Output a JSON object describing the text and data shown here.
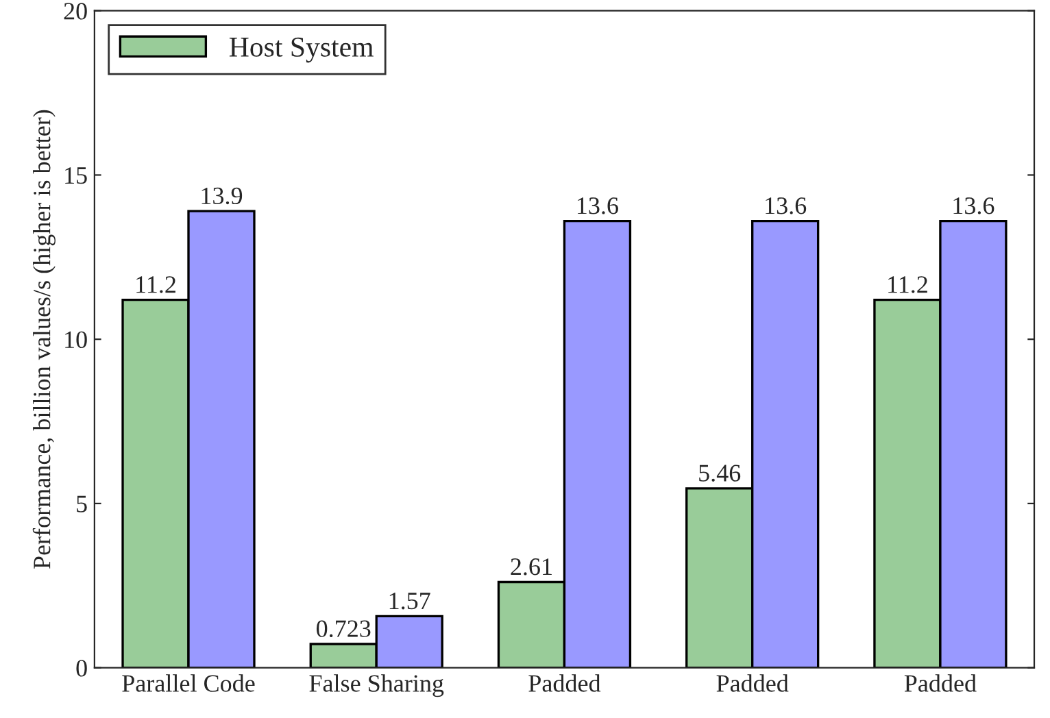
{
  "chart_data": {
    "type": "bar",
    "ylabel": "Performance, billion values/s (higher is better)",
    "categories": [
      "Parallel Code",
      "False Sharing",
      "Padded",
      "Padded",
      "Padded"
    ],
    "series": [
      {
        "name": "Host System",
        "color": "#99cc99",
        "values": [
          11.2,
          0.723,
          2.61,
          5.46,
          11.2
        ]
      },
      {
        "color": "#9999ff",
        "values": [
          13.9,
          1.57,
          13.6,
          13.6,
          13.6
        ]
      }
    ],
    "ylim": [
      0,
      20
    ],
    "yticks": [
      0,
      5,
      10,
      15,
      20
    ],
    "data_labels": true,
    "legend": "top left",
    "grid": false
  }
}
